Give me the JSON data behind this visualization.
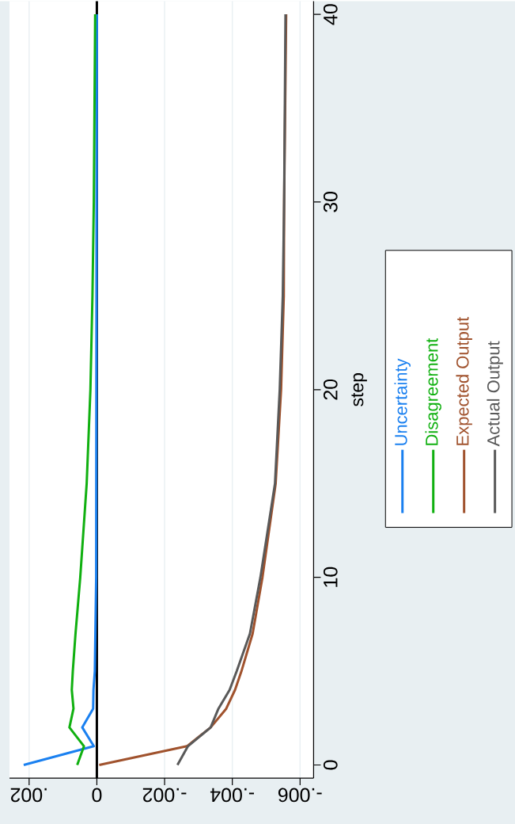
{
  "chart_data": {
    "type": "line",
    "ylabel": "step",
    "series": [
      {
        "name": "Uncertainty",
        "color": "#1a80f0",
        "x": [
          0.00216,
          9e-05,
          0.00043,
          0.00011,
          0.0001,
          6e-05,
          2e-05,
          0
        ],
        "values": [
          0,
          1,
          2,
          3,
          4,
          5,
          10,
          40
        ]
      },
      {
        "name": "Disagreement",
        "color": "#10b010",
        "x": [
          0.00058,
          0.00038,
          0.00081,
          0.00069,
          0.00074,
          0.00071,
          0.00063,
          0.00049,
          0.0003,
          0.00019,
          0.00013,
          9e-05,
          7e-05,
          5e-05
        ],
        "values": [
          0,
          1,
          2,
          3,
          4,
          5,
          7,
          10,
          15,
          20,
          25,
          30,
          35,
          40
        ]
      },
      {
        "name": "Expected Output",
        "color": "#a0522d",
        "x": [
          -7e-05,
          -0.00266,
          -0.00336,
          -0.00382,
          -0.00408,
          -0.00427,
          -0.0046,
          -0.00489,
          -0.00528,
          -0.00544,
          -0.00552,
          -0.00553,
          -0.00556,
          -0.00559
        ],
        "values": [
          0,
          1,
          2,
          3,
          4,
          5,
          7,
          10,
          15,
          20,
          25,
          30,
          35,
          40
        ]
      },
      {
        "name": "Actual Output",
        "color": "#595959",
        "x": [
          -0.00238,
          -0.00269,
          -0.00336,
          -0.00359,
          -0.00392,
          -0.00413,
          -0.00452,
          -0.00483,
          -0.00526,
          -0.0054,
          -0.00549,
          -0.00553,
          -0.00555,
          -0.00557
        ],
        "values": [
          0,
          1,
          2,
          3,
          4,
          5,
          7,
          10,
          15,
          20,
          25,
          30,
          35,
          40
        ]
      }
    ],
    "ylim": [
      -0.7,
      40.7
    ],
    "yticks": [
      0,
      10,
      20,
      30,
      40
    ],
    "xlim": [
      0.00258,
      -0.0064
    ],
    "xticks": [
      {
        "value": 0.002,
        "label": ".002"
      },
      {
        "value": 0,
        "label": "0"
      },
      {
        "value": -0.002,
        "label": "-.002"
      },
      {
        "value": -0.004,
        "label": "-.004"
      },
      {
        "value": -0.006,
        "label": "-.006"
      }
    ],
    "ref_lines": [
      {
        "axis": "x",
        "value": 0,
        "color": "#000000"
      }
    ],
    "grid": "x",
    "legend": "right"
  }
}
